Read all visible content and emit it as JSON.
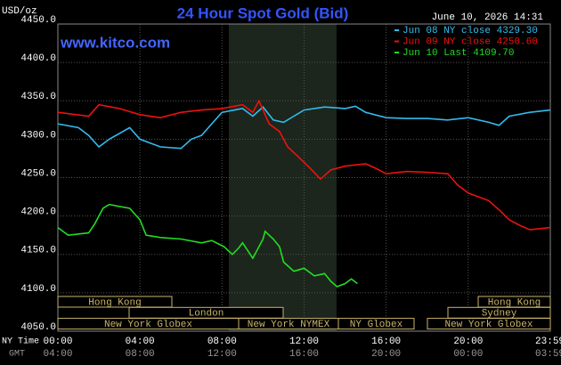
{
  "chart_data": {
    "type": "line",
    "title": "24 Hour Spot Gold (Bid)",
    "watermark": "www.kitco.com",
    "unit_label": "USD/oz",
    "timestamp": "June 10, 2026 14:31",
    "ylim": [
      4050,
      4450
    ],
    "yticks": [
      {
        "value": 4050,
        "label": "4050.0"
      },
      {
        "value": 4100,
        "label": "4100.0"
      },
      {
        "value": 4150,
        "label": "4150.0"
      },
      {
        "value": 4200,
        "label": "4200.0"
      },
      {
        "value": 4250,
        "label": "4250.0"
      },
      {
        "value": 4300,
        "label": "4300.0"
      },
      {
        "value": 4350,
        "label": "4350.0"
      },
      {
        "value": 4400,
        "label": "4400.0"
      },
      {
        "value": 4450,
        "label": "4450.0"
      }
    ],
    "xlim": [
      0,
      24
    ],
    "xticks": [
      {
        "value": 0,
        "label": "00:00"
      },
      {
        "value": 4,
        "label": "04:00"
      },
      {
        "value": 8,
        "label": "08:00"
      },
      {
        "value": 12,
        "label": "12:00"
      },
      {
        "value": 16,
        "label": "16:00"
      },
      {
        "value": 20,
        "label": "20:00"
      },
      {
        "value": 23.98,
        "label": "23:59"
      }
    ],
    "xticks_gmt": [
      {
        "value": 0,
        "label": "04:00"
      },
      {
        "value": 4,
        "label": "08:00"
      },
      {
        "value": 8,
        "label": "12:00"
      },
      {
        "value": 12,
        "label": "16:00"
      },
      {
        "value": 16,
        "label": "20:00"
      },
      {
        "value": 20,
        "label": "00:00"
      },
      {
        "value": 23.98,
        "label": "03:59"
      }
    ],
    "xrow_labels": [
      "NY Time",
      "GMT"
    ],
    "shade": [
      8.33,
      13.58
    ],
    "grid": true,
    "sessions": [
      {
        "label": "Hong Kong"
      },
      {
        "label": "London"
      },
      {
        "label": "New York Globex"
      },
      {
        "label": "New York NYMEX"
      },
      {
        "label": "NY Globex"
      },
      {
        "label": "Hong Kong"
      },
      {
        "label": "Sydney"
      },
      {
        "label": "New York Globex"
      }
    ],
    "series": [
      {
        "name": "Jun 08 NY close 4329.30",
        "color": "#33bbee",
        "x": [
          0,
          1,
          1.5,
          2,
          2.5,
          3.5,
          4,
          5,
          6,
          6.5,
          7,
          7.5,
          8,
          9,
          9.5,
          10,
          10.5,
          11,
          11.5,
          12,
          13,
          14,
          14.5,
          15,
          16,
          17,
          18,
          19,
          20,
          21,
          21.5,
          22,
          23,
          24
        ],
        "values": [
          4320,
          4315,
          4305,
          4290,
          4300,
          4315,
          4300,
          4290,
          4288,
          4300,
          4305,
          4320,
          4335,
          4340,
          4330,
          4342,
          4325,
          4322,
          4330,
          4338,
          4342,
          4340,
          4343,
          4335,
          4328,
          4327,
          4327,
          4325,
          4328,
          4322,
          4318,
          4330,
          4335,
          4338
        ]
      },
      {
        "name": "Jun 09 NY close 4250.60",
        "color": "#ee1111",
        "x": [
          0,
          1.5,
          2,
          3,
          4,
          5,
          6,
          7,
          8,
          9,
          9.5,
          9.8,
          10.3,
          10.8,
          11.2,
          11.8,
          12.3,
          12.8,
          13.3,
          14,
          15,
          15.5,
          16,
          17,
          18,
          19,
          19.5,
          20,
          21,
          21.5,
          22,
          22.5,
          23,
          24
        ],
        "values": [
          4335,
          4330,
          4345,
          4340,
          4332,
          4328,
          4335,
          4338,
          4340,
          4345,
          4335,
          4350,
          4320,
          4310,
          4290,
          4275,
          4262,
          4248,
          4260,
          4265,
          4268,
          4262,
          4255,
          4258,
          4257,
          4255,
          4240,
          4230,
          4220,
          4208,
          4195,
          4188,
          4182,
          4185
        ]
      },
      {
        "name": "Jun 10 Last 4109.70",
        "color": "#22dd22",
        "x": [
          0,
          0.5,
          1.5,
          1.8,
          2.2,
          2.5,
          3.5,
          4,
          4.3,
          5,
          6,
          7,
          7.5,
          8.1,
          8.5,
          8.8,
          9,
          9.5,
          10,
          10.1,
          10.5,
          10.8,
          11,
          11.5,
          12,
          12.5,
          13,
          13.3,
          13.6,
          14,
          14.3,
          14.6
        ],
        "values": [
          4185,
          4175,
          4178,
          4190,
          4210,
          4215,
          4210,
          4195,
          4175,
          4172,
          4170,
          4165,
          4168,
          4160,
          4150,
          4158,
          4165,
          4145,
          4170,
          4180,
          4170,
          4160,
          4140,
          4128,
          4132,
          4122,
          4125,
          4115,
          4108,
          4112,
          4118,
          4112
        ]
      }
    ]
  }
}
